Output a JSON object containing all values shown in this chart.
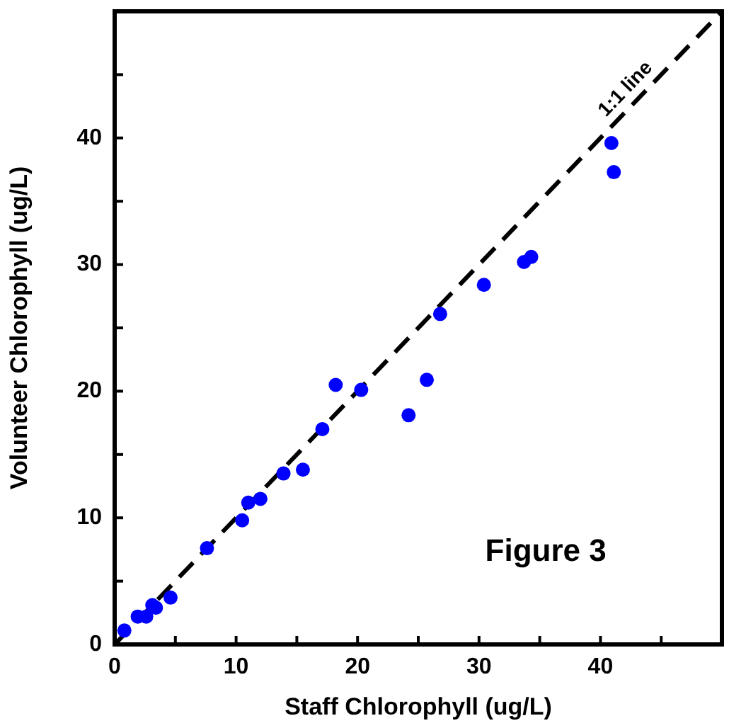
{
  "chart_data": {
    "type": "scatter",
    "xlabel": "Staff Chlorophyll (ug/L)",
    "ylabel": "Volunteer Chlorophyll (ug/L)",
    "annotations": [
      "Figure 3"
    ],
    "xlim": [
      0,
      50
    ],
    "ylim": [
      0,
      50
    ],
    "xticks": [
      0,
      {
        "value": 5,
        "label": null
      },
      10,
      {
        "value": 15,
        "label": null
      },
      20,
      {
        "value": 25,
        "label": null
      },
      30,
      {
        "value": 35,
        "label": null
      },
      40,
      {
        "value": 45,
        "label": null
      }
    ],
    "yticks": [
      0,
      {
        "value": 5,
        "label": null
      },
      10,
      {
        "value": 15,
        "label": null
      },
      20,
      {
        "value": 25,
        "label": null
      },
      30,
      {
        "value": 35,
        "label": null
      },
      40,
      {
        "value": 45,
        "label": null
      }
    ],
    "grid": false,
    "legend": false,
    "marker": "circle",
    "series": [
      {
        "color": "#0000ff",
        "x": [
          0.8,
          1.9,
          2.6,
          3.1,
          3.4,
          4.6,
          7.6,
          10.5,
          11.0,
          12.0,
          13.9,
          15.5,
          17.1,
          18.2,
          20.3,
          24.2,
          25.7,
          26.8,
          30.4,
          33.7,
          34.3,
          40.9,
          41.1
        ],
        "values": [
          1.1,
          2.2,
          2.2,
          3.1,
          2.9,
          3.7,
          7.6,
          9.8,
          11.2,
          11.5,
          13.5,
          13.8,
          17.0,
          20.5,
          20.1,
          18.1,
          20.9,
          26.1,
          28.4,
          30.2,
          30.6,
          39.6,
          37.3
        ]
      },
      {
        "type": "line",
        "name": "1:1 line",
        "color": "#000000",
        "line_style": "dashed",
        "marker": "none",
        "x": [
          0,
          50
        ],
        "values": [
          0,
          50
        ]
      }
    ]
  }
}
